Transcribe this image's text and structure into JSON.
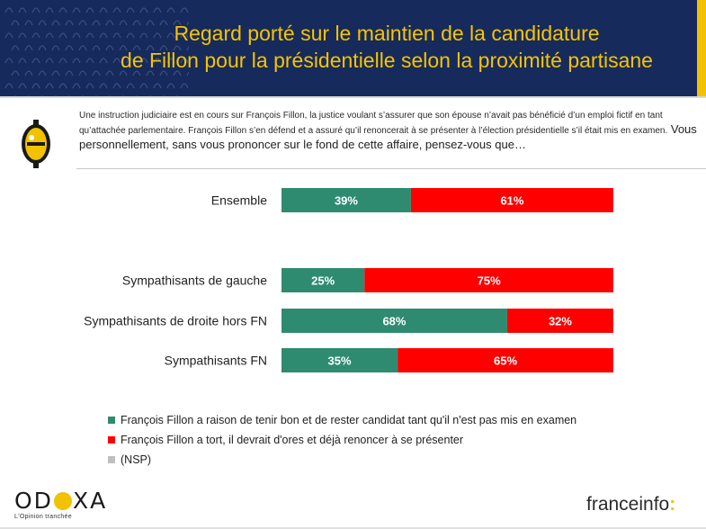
{
  "header": {
    "title_line1": "Regard porté sur le maintien de la candidature",
    "title_line2": "de Fillon pour la présidentielle selon la proximité partisane"
  },
  "question": {
    "context": "Une instruction judiciaire est en cours sur François Fillon, la justice voulant s’assurer que son épouse n’avait pas bénéficié d’un emploi fictif en tant qu’attachée parlementaire. François Fillon s’en défend et a assuré qu’il renoncerait à se présenter à l’élection présidentielle s’il était mis en examen.",
    "lead": " Vous personnellement, sans vous prononcer sur le fond de cette affaire, pensez-vous que…"
  },
  "colors": {
    "header_bg": "#172a5c",
    "title": "#f5c400",
    "accent_yellow": "#f2c200",
    "series_green": "#2e8b6f",
    "series_red": "#ff0000",
    "series_grey": "#bfbfbf"
  },
  "chart_data": {
    "type": "bar",
    "orientation": "horizontal",
    "stacked": true,
    "percent_scale": [
      0,
      100
    ],
    "categories": [
      "Ensemble",
      "Sympathisants de gauche",
      "Sympathisants de droite hors FN",
      "Sympathisants FN"
    ],
    "series": [
      {
        "name": "François Fillon a raison de tenir bon et de rester candidat tant qu'il n'est pas mis en examen",
        "color": "#2e8b6f",
        "values": [
          39,
          25,
          68,
          35
        ],
        "labels": [
          "39%",
          "25%",
          "68%",
          "35%"
        ]
      },
      {
        "name": "François Fillon  a tort, il devrait d'ores et déjà renoncer à se présenter",
        "color": "#ff0000",
        "values": [
          61,
          75,
          32,
          65
        ],
        "labels": [
          "61%",
          "75%",
          "32%",
          "65%"
        ]
      },
      {
        "name": "(NSP)",
        "color": "#bfbfbf",
        "values": [
          0,
          0,
          0,
          0
        ],
        "labels": [
          "",
          "",
          "",
          ""
        ]
      }
    ],
    "legend_position": "bottom"
  },
  "footer": {
    "odoxa_word_left": "OD",
    "odoxa_word_right": "XA",
    "odoxa_tagline": "L'Opinion tranchée",
    "franceinfo_word": "franceinfo",
    "franceinfo_colon": ":"
  }
}
